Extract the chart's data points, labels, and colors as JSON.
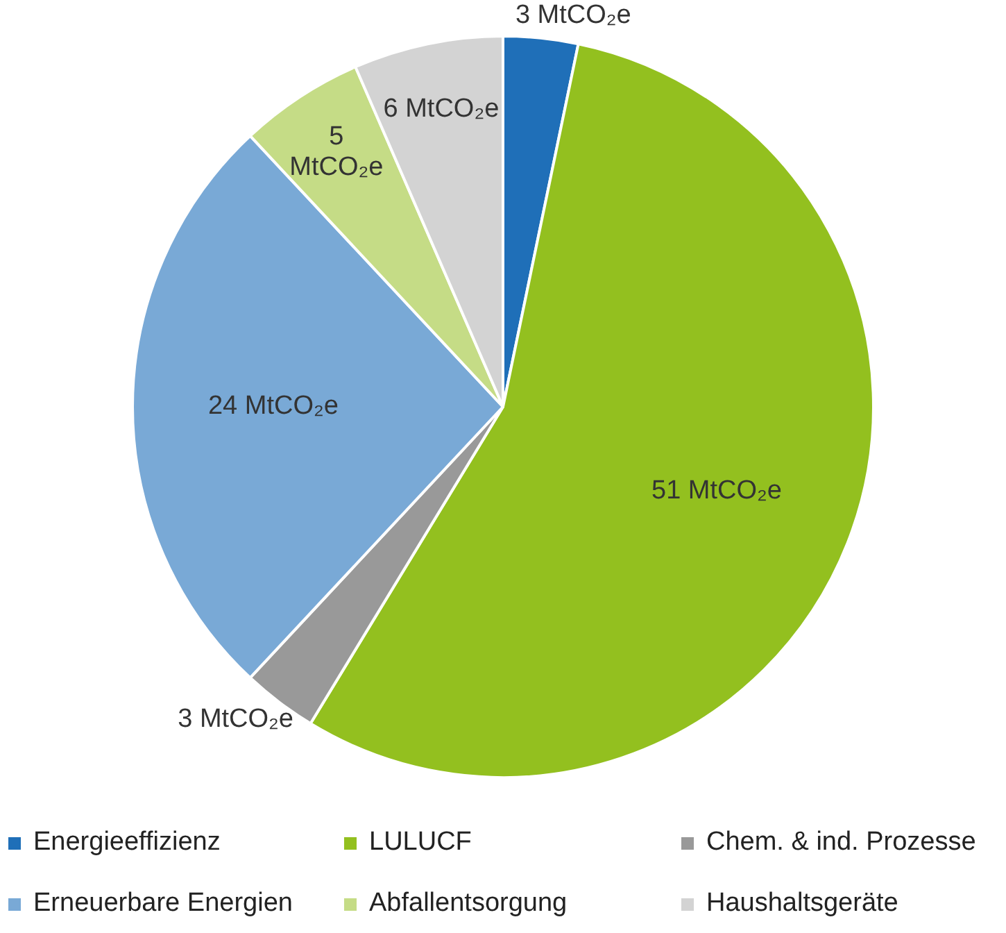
{
  "chart_data": {
    "type": "pie",
    "categories": [
      "Energieeffizienz",
      "LULUCF",
      "Chem. & ind. Prozesse",
      "Erneuerbare Energien",
      "Abfallentsorgung",
      "Haushaltsgeräte"
    ],
    "values": [
      3,
      51,
      3,
      24,
      5,
      6
    ],
    "colors": [
      "#1f6fb8",
      "#93c01f",
      "#999999",
      "#79a9d6",
      "#c5dc86",
      "#d3d3d3"
    ],
    "value_labels": [
      "3 MtCO₂e",
      "51 MtCO₂e",
      "3 MtCO₂e",
      "24 MtCO₂e",
      "5 MtCO₂e",
      "6 MtCO₂e"
    ],
    "legend": "bottom"
  }
}
